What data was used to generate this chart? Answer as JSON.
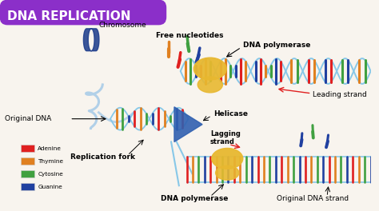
{
  "title": "DNA REPLICATION",
  "title_bg": "#8B2FC9",
  "title_color": "#ffffff",
  "bg_color": "#f8f4ee",
  "labels": {
    "chromosome": "Chromosome",
    "free_nucleotides": "Free nucleotides",
    "dna_polymerase_top": "DNA polymerase",
    "leading_strand": "Leading strand",
    "original_dna": "Original DNA",
    "helicase": "Helicase",
    "lagging_strand": "Lagging\nstrand",
    "replication_fork": "Replication fork",
    "dna_polymerase_bot": "DNA polymerase",
    "original_dna_strand": "Original DNA strand"
  },
  "legend": [
    {
      "label": "Adenine",
      "color": "#e02020"
    },
    {
      "label": "Thymine",
      "color": "#e08020"
    },
    {
      "label": "Cytosine",
      "color": "#40a040"
    },
    {
      "label": "Guanine",
      "color": "#2040a0"
    }
  ],
  "dna_colors": [
    "#e02020",
    "#e08020",
    "#40a040",
    "#2040a0"
  ],
  "strand_color": "#88c8e8",
  "polymerase_color": "#e8b830",
  "helicase_color": "#3060b0",
  "arrow_color": "#e02020",
  "lfs": 6.5,
  "lfs_bold": 7.0
}
